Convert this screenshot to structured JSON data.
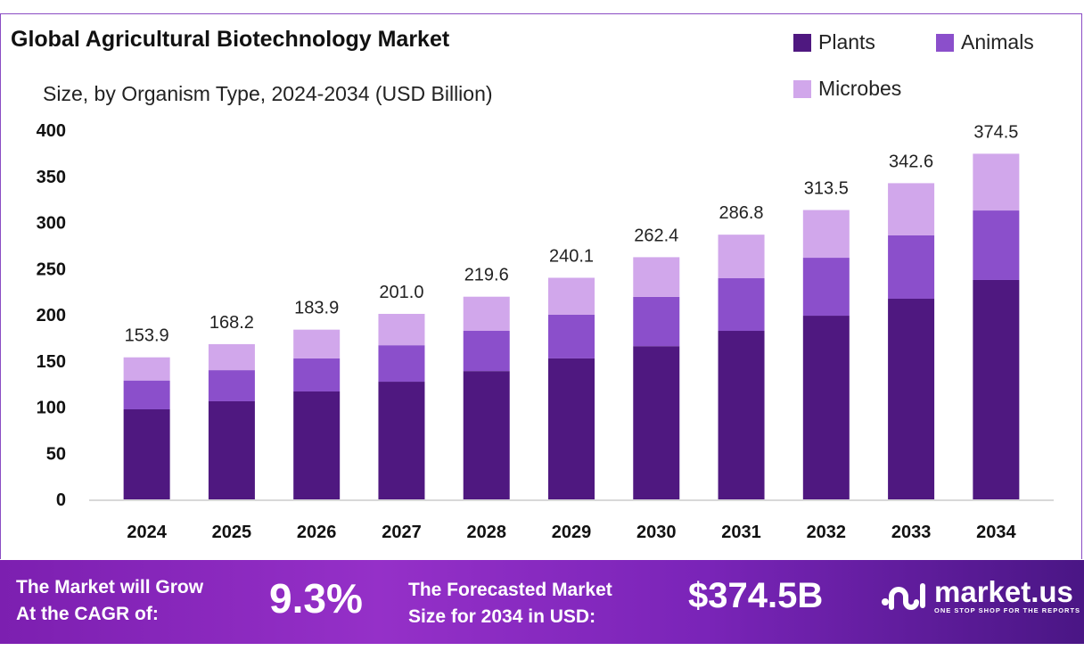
{
  "chart_data": {
    "type": "bar",
    "stacked": true,
    "title": "Global Agricultural Biotechnology Market",
    "subtitle": "Size, by Organism Type, 2024-2034 (USD Billion)",
    "categories": [
      "2024",
      "2025",
      "2026",
      "2027",
      "2028",
      "2029",
      "2030",
      "2031",
      "2032",
      "2033",
      "2034"
    ],
    "series": [
      {
        "name": "Plants",
        "color": "#4f1880",
        "values": [
          97.6,
          106.3,
          116.9,
          127.5,
          139.0,
          152.7,
          166.0,
          182.6,
          199.0,
          217.4,
          237.7
        ]
      },
      {
        "name": "Animals",
        "color": "#8b4fcb",
        "values": [
          31.2,
          33.7,
          35.8,
          39.5,
          43.6,
          47.3,
          53.4,
          57.0,
          62.8,
          68.6,
          75.3
        ]
      },
      {
        "name": "Microbes",
        "color": "#d1a7eb",
        "values": [
          25.1,
          28.2,
          31.2,
          34.0,
          37.0,
          40.1,
          43.0,
          47.2,
          51.7,
          56.6,
          61.5
        ]
      }
    ],
    "totals": [
      "153.9",
      "168.2",
      "183.9",
      "201.0",
      "219.6",
      "240.1",
      "262.4",
      "286.8",
      "313.5",
      "342.6",
      "374.5"
    ],
    "yticks": [
      "0",
      "50",
      "100",
      "150",
      "200",
      "250",
      "300",
      "350",
      "400"
    ],
    "ylim": [
      0,
      400
    ],
    "grid": false,
    "legend": "top-right"
  },
  "banner": {
    "cagr_label_1": "The Market will Grow",
    "cagr_label_2": "At the CAGR of:",
    "cagr_value": "9.3%",
    "forecast_label_1": "The Forecasted Market",
    "forecast_label_2": "Size for 2034 in USD:",
    "forecast_value": "$374.5B",
    "logo_text": "market.us",
    "logo_tagline": "ONE STOP SHOP FOR THE REPORTS"
  }
}
